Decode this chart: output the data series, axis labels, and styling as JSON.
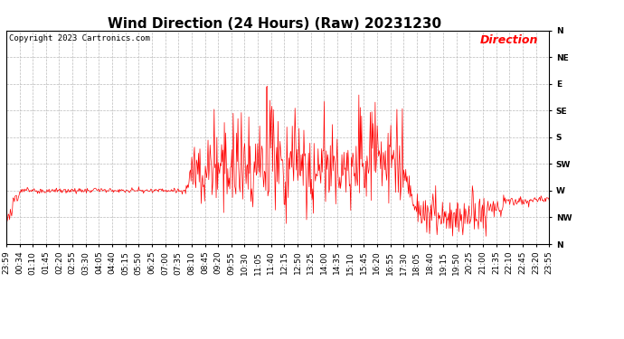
{
  "title": "Wind Direction (24 Hours) (Raw) 20231230",
  "copyright": "Copyright 2023 Cartronics.com",
  "legend_label": "Direction",
  "legend_color": "red",
  "line_color": "red",
  "bg_color": "white",
  "grid_color": "#bbbbbb",
  "yticks_labels": [
    "N",
    "NW",
    "W",
    "SW",
    "S",
    "SE",
    "E",
    "NE",
    "N"
  ],
  "yticks_values": [
    360,
    315,
    270,
    225,
    180,
    135,
    90,
    45,
    0
  ],
  "ylim": [
    0,
    360
  ],
  "xtick_labels": [
    "23:59",
    "00:34",
    "01:10",
    "01:45",
    "02:20",
    "02:55",
    "03:30",
    "04:05",
    "04:40",
    "05:15",
    "05:50",
    "06:25",
    "07:00",
    "07:35",
    "08:10",
    "08:45",
    "09:20",
    "09:55",
    "10:30",
    "11:05",
    "11:40",
    "12:15",
    "12:50",
    "13:25",
    "14:00",
    "14:35",
    "15:10",
    "15:45",
    "16:20",
    "16:55",
    "17:30",
    "18:05",
    "18:40",
    "19:15",
    "19:50",
    "20:25",
    "21:00",
    "21:35",
    "22:10",
    "22:45",
    "23:20",
    "23:55"
  ],
  "title_fontsize": 11,
  "axis_label_fontsize": 6.5,
  "copyright_fontsize": 6.5,
  "legend_fontsize": 9
}
